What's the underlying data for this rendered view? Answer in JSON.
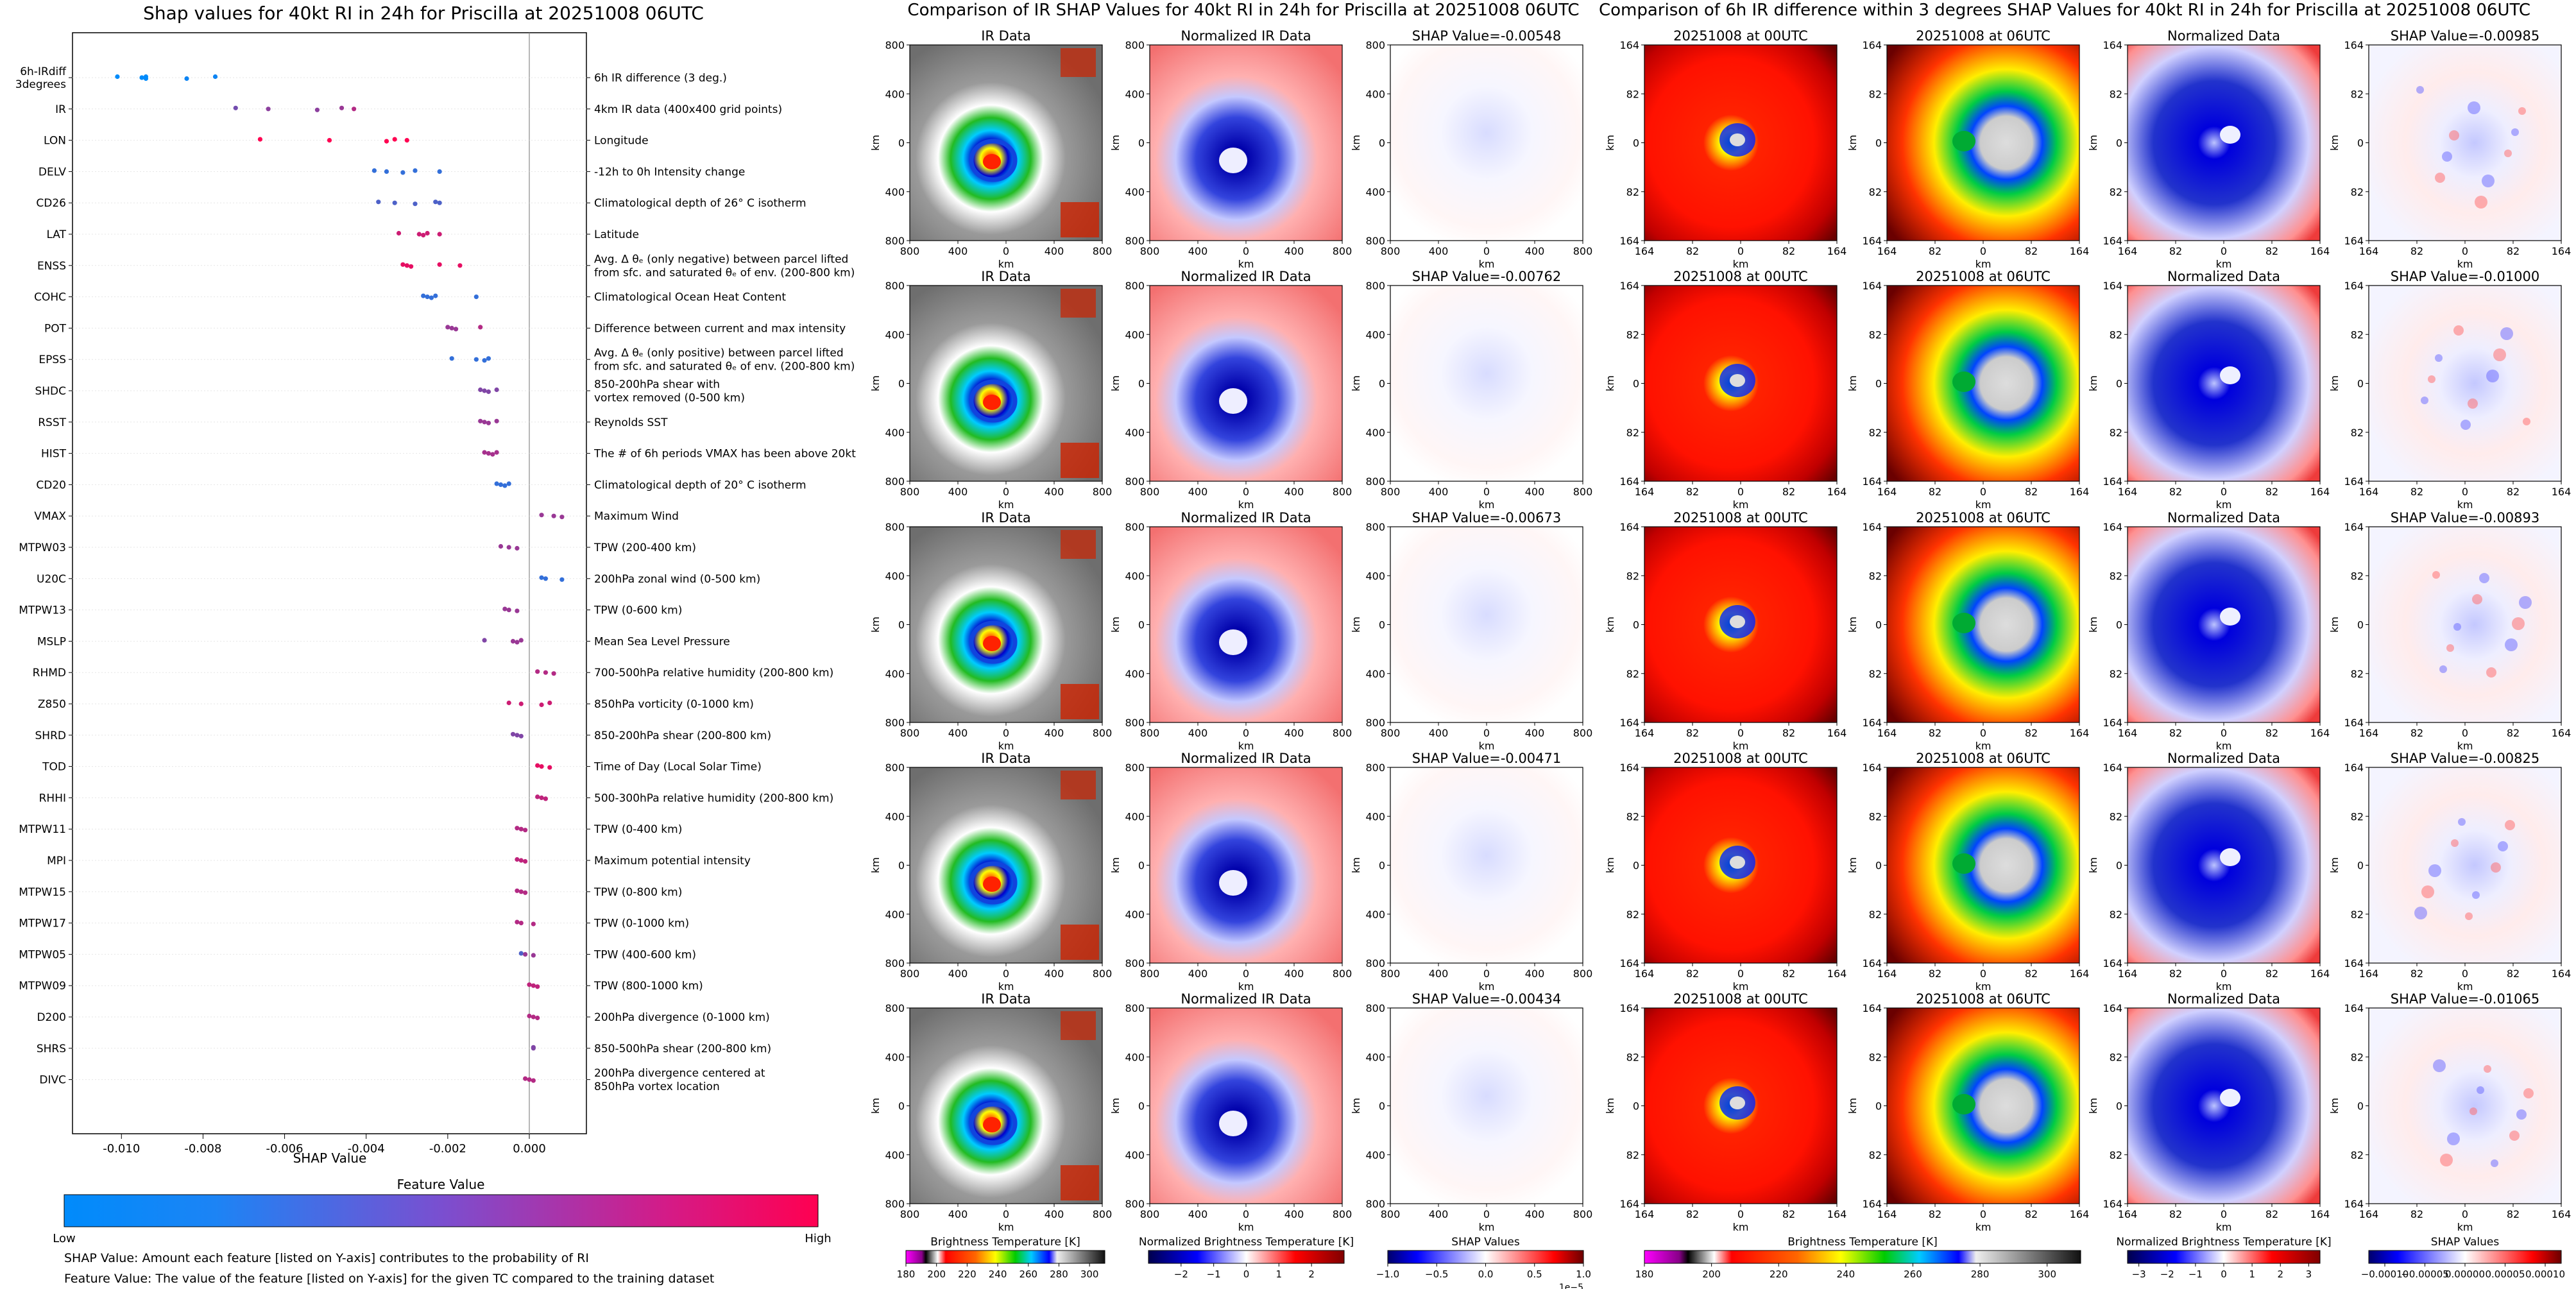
{
  "chart_data": [
    {
      "type": "scatter",
      "title": "Shap values for 40kt RI in 24h for Priscilla at 20251008 06UTC",
      "xlabel": "SHAP Value",
      "xlim": [
        -0.0112,
        0.0014
      ],
      "xticks": [
        "-0.010",
        "-0.008",
        "-0.006",
        "-0.004",
        "-0.002",
        "0.000"
      ],
      "xtick_values": [
        -0.01,
        -0.008,
        -0.006,
        -0.004,
        -0.002,
        0.0
      ],
      "grid": false,
      "features": [
        {
          "name": "6h-IRdiff\n3degrees",
          "desc": "6h IR difference (3 deg.)",
          "points": [
            [
              -0.0101,
              0
            ],
            [
              -0.0095,
              0
            ],
            [
              -0.0094,
              0
            ],
            [
              -0.0094,
              0
            ],
            [
              -0.0095,
              0
            ],
            [
              -0.0084,
              0.05
            ],
            [
              -0.0077,
              0.05
            ]
          ]
        },
        {
          "name": "IR",
          "desc": "4km IR data (400x400 grid points)",
          "points": [
            [
              -0.0072,
              0.45
            ],
            [
              -0.0064,
              0.55
            ],
            [
              -0.0052,
              0.55
            ],
            [
              -0.0046,
              0.6
            ],
            [
              -0.0043,
              0.7
            ]
          ]
        },
        {
          "name": "LON",
          "desc": "Longitude",
          "points": [
            [
              -0.0066,
              1
            ],
            [
              -0.0049,
              1
            ],
            [
              -0.0035,
              1
            ],
            [
              -0.0033,
              1
            ],
            [
              -0.003,
              1
            ]
          ]
        },
        {
          "name": "DELV",
          "desc": "-12h to 0h Intensity change",
          "points": [
            [
              -0.0038,
              0.2
            ],
            [
              -0.0035,
              0.2
            ],
            [
              -0.0031,
              0.2
            ],
            [
              -0.0028,
              0.2
            ],
            [
              -0.0022,
              0.2
            ]
          ]
        },
        {
          "name": "CD26",
          "desc": "Climatological depth of 26° C isotherm",
          "points": [
            [
              -0.0037,
              0.3
            ],
            [
              -0.0033,
              0.3
            ],
            [
              -0.0028,
              0.3
            ],
            [
              -0.0023,
              0.3
            ],
            [
              -0.0022,
              0.3
            ]
          ]
        },
        {
          "name": "LAT",
          "desc": "Latitude",
          "points": [
            [
              -0.0032,
              0.8
            ],
            [
              -0.0027,
              0.8
            ],
            [
              -0.0026,
              0.8
            ],
            [
              -0.0025,
              0.8
            ],
            [
              -0.0022,
              0.8
            ]
          ]
        },
        {
          "name": "ENSS",
          "desc": "Avg. Δ θₑ (only negative) between parcel lifted\nfrom sfc. and saturated θₑ of env. (200-800 km)",
          "points": [
            [
              -0.0031,
              0.9
            ],
            [
              -0.003,
              0.9
            ],
            [
              -0.0029,
              0.9
            ],
            [
              -0.0022,
              0.9
            ],
            [
              -0.0017,
              0.9
            ]
          ]
        },
        {
          "name": "COHC",
          "desc": "Climatological Ocean Heat Content",
          "points": [
            [
              -0.0026,
              0.2
            ],
            [
              -0.0025,
              0.2
            ],
            [
              -0.0024,
              0.2
            ],
            [
              -0.0023,
              0.2
            ],
            [
              -0.0013,
              0.2
            ]
          ]
        },
        {
          "name": "POT",
          "desc": "Difference between current and max intensity",
          "points": [
            [
              -0.002,
              0.6
            ],
            [
              -0.0019,
              0.6
            ],
            [
              -0.0018,
              0.6
            ],
            [
              -0.0012,
              0.7
            ]
          ]
        },
        {
          "name": "EPSS",
          "desc": "Avg. Δ θₑ (only positive) between parcel lifted\nfrom sfc. and saturated θₑ of env. (200-800 km)",
          "points": [
            [
              -0.0019,
              0.2
            ],
            [
              -0.0013,
              0.2
            ],
            [
              -0.0011,
              0.2
            ],
            [
              -0.001,
              0.2
            ]
          ]
        },
        {
          "name": "SHDC",
          "desc": "850-200hPa shear with\nvortex removed (0-500 km)",
          "points": [
            [
              -0.0012,
              0.5
            ],
            [
              -0.0011,
              0.5
            ],
            [
              -0.001,
              0.5
            ],
            [
              -0.0008,
              0.5
            ]
          ]
        },
        {
          "name": "RSST",
          "desc": "Reynolds SST",
          "points": [
            [
              -0.0012,
              0.6
            ],
            [
              -0.0011,
              0.6
            ],
            [
              -0.001,
              0.6
            ],
            [
              -0.0008,
              0.6
            ]
          ]
        },
        {
          "name": "HIST",
          "desc": "The # of 6h periods VMAX has been above 20kt",
          "points": [
            [
              -0.0011,
              0.65
            ],
            [
              -0.001,
              0.65
            ],
            [
              -0.0009,
              0.65
            ],
            [
              -0.0008,
              0.65
            ]
          ]
        },
        {
          "name": "CD20",
          "desc": "Climatological depth of 20° C isotherm",
          "points": [
            [
              -0.0008,
              0.2
            ],
            [
              -0.0007,
              0.2
            ],
            [
              -0.0006,
              0.2
            ],
            [
              -0.0005,
              0.2
            ]
          ]
        },
        {
          "name": "VMAX",
          "desc": "Maximum Wind",
          "points": [
            [
              0.0003,
              0.6
            ],
            [
              0.0006,
              0.6
            ],
            [
              0.0008,
              0.6
            ]
          ]
        },
        {
          "name": "MTPW03",
          "desc": "TPW (200-400 km)",
          "points": [
            [
              -0.0007,
              0.6
            ],
            [
              -0.0005,
              0.6
            ],
            [
              -0.0003,
              0.6
            ]
          ]
        },
        {
          "name": "U20C",
          "desc": "200hPa zonal wind (0-500 km)",
          "points": [
            [
              0.0003,
              0.2
            ],
            [
              0.0004,
              0.2
            ],
            [
              0.0008,
              0.2
            ]
          ]
        },
        {
          "name": "MTPW13",
          "desc": "TPW (0-600 km)",
          "points": [
            [
              -0.0006,
              0.6
            ],
            [
              -0.0005,
              0.6
            ],
            [
              -0.0003,
              0.6
            ]
          ]
        },
        {
          "name": "MSLP",
          "desc": "Mean Sea Level Pressure",
          "points": [
            [
              -0.0011,
              0.5
            ],
            [
              -0.0004,
              0.6
            ],
            [
              -0.0003,
              0.6
            ],
            [
              -0.0002,
              0.6
            ]
          ]
        },
        {
          "name": "RHMD",
          "desc": "700-500hPa relative humidity (200-800 km)",
          "points": [
            [
              0.0002,
              0.7
            ],
            [
              0.0004,
              0.7
            ],
            [
              0.0006,
              0.7
            ]
          ]
        },
        {
          "name": "Z850",
          "desc": "850hPa vorticity (0-1000 km)",
          "points": [
            [
              -0.0005,
              0.8
            ],
            [
              -0.0002,
              0.8
            ],
            [
              0.0003,
              0.8
            ],
            [
              0.0005,
              0.8
            ]
          ]
        },
        {
          "name": "SHRD",
          "desc": "850-200hPa shear (200-800 km)",
          "points": [
            [
              -0.0004,
              0.5
            ],
            [
              -0.0003,
              0.5
            ],
            [
              -0.0002,
              0.5
            ]
          ]
        },
        {
          "name": "TOD",
          "desc": "Time of Day (Local Solar Time)",
          "points": [
            [
              0.0002,
              0.9
            ],
            [
              0.0003,
              0.9
            ],
            [
              0.0005,
              0.9
            ]
          ]
        },
        {
          "name": "RHHI",
          "desc": "500-300hPa relative humidity (200-800 km)",
          "points": [
            [
              0.0002,
              0.75
            ],
            [
              0.0003,
              0.75
            ],
            [
              0.0004,
              0.75
            ]
          ]
        },
        {
          "name": "MTPW11",
          "desc": "TPW (0-400 km)",
          "points": [
            [
              -0.0003,
              0.7
            ],
            [
              -0.0002,
              0.7
            ],
            [
              -0.0001,
              0.7
            ]
          ]
        },
        {
          "name": "MPI",
          "desc": "Maximum potential intensity",
          "points": [
            [
              -0.0003,
              0.75
            ],
            [
              -0.0002,
              0.75
            ],
            [
              -0.0001,
              0.75
            ]
          ]
        },
        {
          "name": "MTPW15",
          "desc": "TPW (0-800 km)",
          "points": [
            [
              -0.0003,
              0.7
            ],
            [
              -0.0002,
              0.7
            ],
            [
              -0.0001,
              0.7
            ]
          ]
        },
        {
          "name": "MTPW17",
          "desc": "TPW (0-1000 km)",
          "points": [
            [
              -0.0003,
              0.7
            ],
            [
              -0.0002,
              0.7
            ],
            [
              0.0001,
              0.7
            ]
          ]
        },
        {
          "name": "MTPW05",
          "desc": "TPW (400-600 km)",
          "points": [
            [
              -0.0002,
              0.3
            ],
            [
              -0.0001,
              0.6
            ],
            [
              0.0001,
              0.6
            ]
          ]
        },
        {
          "name": "MTPW09",
          "desc": "TPW (800-1000 km)",
          "points": [
            [
              0.0,
              0.75
            ],
            [
              0.0001,
              0.75
            ],
            [
              0.0002,
              0.75
            ]
          ]
        },
        {
          "name": "D200",
          "desc": "200hPa divergence (0-1000 km)",
          "points": [
            [
              0.0,
              0.7
            ],
            [
              0.0001,
              0.7
            ],
            [
              0.0002,
              0.7
            ]
          ]
        },
        {
          "name": "SHRS",
          "desc": "850-500hPa shear (200-800 km)",
          "points": [
            [
              0.0001,
              0.5
            ],
            [
              0.0001,
              0.5
            ]
          ]
        },
        {
          "name": "DIVC",
          "desc": "200hPa divergence centered at\n850hPa vortex location",
          "points": [
            [
              -0.0001,
              0.7
            ],
            [
              0.0,
              0.7
            ],
            [
              0.0001,
              0.7
            ]
          ]
        }
      ],
      "colorbar": {
        "label": "Feature Value",
        "low": "Low",
        "high": "High",
        "colors": [
          "#008bfb",
          "#ff0051"
        ]
      },
      "notes": [
        "SHAP Value: Amount each feature [listed on Y-axis] contributes to the probability of RI",
        "Feature Value: The value of the feature [listed on Y-axis] for the given TC compared to the training dataset"
      ]
    },
    {
      "type": "heatmap",
      "title": "Comparison of IR SHAP Values for 40kt RI in 24h for Priscilla at 20251008 06UTC",
      "columns": [
        "IR Data",
        "Normalized IR Data"
      ],
      "shap_titles": [
        "SHAP Value=-0.00548",
        "SHAP Value=-0.00762",
        "SHAP Value=-0.00673",
        "SHAP Value=-0.00471",
        "SHAP Value=-0.00434"
      ],
      "xlabel": "km",
      "ylabel": "km",
      "xticks": [
        "800",
        "400",
        "0",
        "400",
        "800"
      ],
      "yticks": [
        "800",
        "400",
        "0",
        "400",
        "800"
      ],
      "colorbars": [
        {
          "label": "Brightness Temperature [K]",
          "ticks": [
            "180",
            "200",
            "220",
            "240",
            "260",
            "280",
            "300"
          ],
          "range": [
            180,
            310
          ]
        },
        {
          "label": "Normalized Brightness Temperature [K]",
          "ticks": [
            "−2",
            "−1",
            "0",
            "1",
            "2"
          ],
          "range": [
            -3,
            3
          ]
        },
        {
          "label": "SHAP Values",
          "ticks": [
            "−1.0",
            "−0.5",
            "0.0",
            "0.5",
            "1.0"
          ],
          "range": [
            -1.0,
            1.0
          ],
          "offset": "1e−5"
        }
      ]
    },
    {
      "type": "heatmap",
      "title": "Comparison of 6h IR difference within 3 degrees SHAP Values for 40kt RI in 24h for Priscilla at 20251008 06UTC",
      "columns": [
        "20251008 at 00UTC",
        "20251008 at 06UTC",
        "Normalized Data"
      ],
      "shap_titles": [
        "SHAP Value=-0.00985",
        "SHAP Value=-0.01000",
        "SHAP Value=-0.00893",
        "SHAP Value=-0.00825",
        "SHAP Value=-0.01065"
      ],
      "xlabel": "km",
      "ylabel": "km",
      "xticks": [
        "164",
        "82",
        "0",
        "82",
        "164"
      ],
      "yticks": [
        "164",
        "82",
        "0",
        "82",
        "164"
      ],
      "colorbars": [
        {
          "label": "Brightness Temperature [K]",
          "ticks": [
            "180",
            "200",
            "220",
            "240",
            "260",
            "280",
            "300"
          ],
          "range": [
            180,
            310
          ]
        },
        {
          "label": "Normalized Brightness Temperature [K]",
          "ticks": [
            "−3",
            "−2",
            "−1",
            "0",
            "1",
            "2",
            "3"
          ],
          "range": [
            -3.4,
            3.4
          ]
        },
        {
          "label": "SHAP Values",
          "ticks": [
            "−0.00010",
            "−0.00005",
            "0.00000",
            "0.00005",
            "0.00010"
          ],
          "range": [
            -0.00012,
            0.00012
          ]
        }
      ]
    }
  ]
}
